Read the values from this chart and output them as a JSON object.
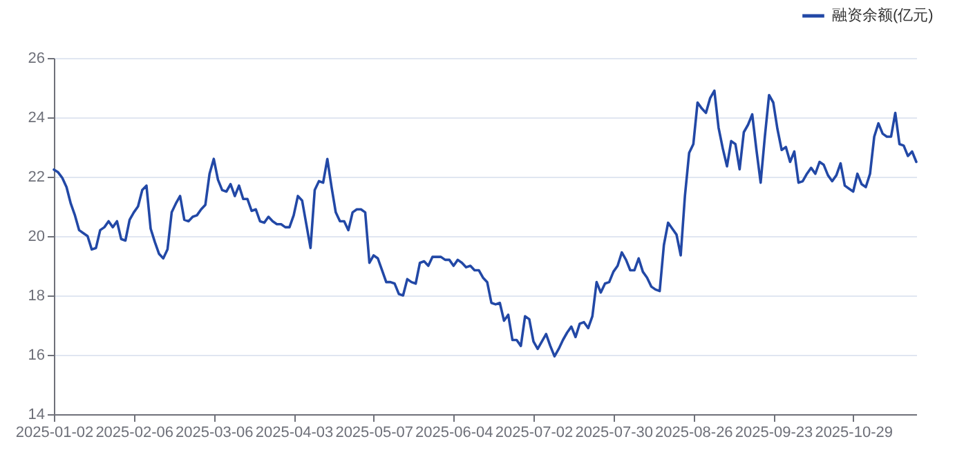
{
  "chart_data": {
    "type": "line",
    "categories": [
      "2025-01-02",
      null,
      null,
      null,
      null,
      null,
      null,
      null,
      null,
      null,
      null,
      null,
      null,
      null,
      null,
      null,
      null,
      null,
      null,
      "2025-02-06",
      null,
      null,
      null,
      null,
      null,
      null,
      null,
      null,
      null,
      null,
      null,
      null,
      null,
      null,
      null,
      null,
      null,
      null,
      "2025-03-06",
      null,
      null,
      null,
      null,
      null,
      null,
      null,
      null,
      null,
      null,
      null,
      null,
      null,
      null,
      null,
      null,
      null,
      null,
      "2025-04-03",
      null,
      null,
      null,
      null,
      null,
      null,
      null,
      null,
      null,
      null,
      null,
      null,
      null,
      null,
      null,
      null,
      null,
      null,
      "2025-05-07",
      null,
      null,
      null,
      null,
      null,
      null,
      null,
      null,
      null,
      null,
      null,
      null,
      null,
      null,
      null,
      null,
      null,
      null,
      "2025-06-04",
      null,
      null,
      null,
      null,
      null,
      null,
      null,
      null,
      null,
      null,
      null,
      null,
      null,
      null,
      null,
      null,
      null,
      null,
      "2025-07-02",
      null,
      null,
      null,
      null,
      null,
      null,
      null,
      null,
      null,
      null,
      null,
      null,
      null,
      null,
      null,
      null,
      null,
      null,
      "2025-07-30",
      null,
      null,
      null,
      null,
      null,
      null,
      null,
      null,
      null,
      null,
      null,
      null,
      null,
      null,
      null,
      null,
      null,
      null,
      "2025-08-26",
      null,
      null,
      null,
      null,
      null,
      null,
      null,
      null,
      null,
      null,
      null,
      null,
      null,
      null,
      null,
      null,
      null,
      null,
      "2025-09-23",
      null,
      null,
      null,
      null,
      null,
      null,
      null,
      null,
      null,
      null,
      null,
      null,
      null,
      null,
      null,
      null,
      null,
      null,
      "2025-10-29",
      null,
      null,
      null,
      null,
      null,
      null,
      null,
      null,
      null,
      null,
      null,
      null,
      null,
      null,
      null
    ],
    "series": [
      {
        "name": "融资余额(亿元)",
        "color": "#2248a6",
        "values": [
          22.24,
          22.15,
          21.96,
          21.65,
          21.1,
          20.7,
          20.2,
          20.1,
          20.0,
          19.55,
          19.6,
          20.2,
          20.3,
          20.5,
          20.3,
          20.5,
          19.9,
          19.85,
          20.55,
          20.8,
          21.0,
          21.55,
          21.7,
          20.25,
          19.8,
          19.4,
          19.25,
          19.55,
          20.8,
          21.1,
          21.35,
          20.55,
          20.5,
          20.65,
          20.7,
          20.9,
          21.05,
          22.1,
          22.6,
          21.9,
          21.55,
          21.5,
          21.75,
          21.35,
          21.7,
          21.25,
          21.25,
          20.85,
          20.9,
          20.5,
          20.45,
          20.65,
          20.5,
          20.4,
          20.4,
          20.3,
          20.3,
          20.7,
          21.35,
          21.2,
          20.4,
          19.6,
          21.55,
          21.85,
          21.8,
          22.6,
          21.65,
          20.8,
          20.5,
          20.5,
          20.2,
          20.8,
          20.9,
          20.9,
          20.8,
          19.1,
          19.35,
          19.25,
          18.85,
          18.45,
          18.45,
          18.4,
          18.05,
          18.0,
          18.55,
          18.45,
          18.4,
          19.1,
          19.15,
          19.0,
          19.3,
          19.3,
          19.3,
          19.2,
          19.2,
          19.0,
          19.2,
          19.1,
          18.95,
          19.0,
          18.85,
          18.85,
          18.6,
          18.45,
          17.75,
          17.7,
          17.75,
          17.15,
          17.35,
          16.5,
          16.5,
          16.3,
          17.3,
          17.2,
          16.45,
          16.2,
          16.45,
          16.7,
          16.3,
          15.95,
          16.2,
          16.5,
          16.75,
          16.95,
          16.6,
          17.05,
          17.1,
          16.9,
          17.3,
          18.45,
          18.1,
          18.4,
          18.45,
          18.8,
          19.0,
          19.45,
          19.2,
          18.85,
          18.85,
          19.25,
          18.8,
          18.6,
          18.3,
          18.2,
          18.15,
          19.7,
          20.45,
          20.25,
          20.05,
          19.35,
          21.35,
          22.8,
          23.1,
          24.5,
          24.3,
          24.15,
          24.65,
          24.9,
          23.65,
          22.95,
          22.35,
          23.2,
          23.1,
          22.25,
          23.5,
          23.75,
          24.1,
          22.9,
          21.8,
          23.35,
          24.75,
          24.5,
          23.6,
          22.9,
          23.0,
          22.5,
          22.85,
          21.8,
          21.85,
          22.1,
          22.3,
          22.1,
          22.5,
          22.4,
          22.05,
          21.85,
          22.05,
          22.45,
          21.7,
          21.6,
          21.5,
          22.1,
          21.75,
          21.65,
          22.1,
          23.35,
          23.8,
          23.45,
          23.35,
          23.35,
          24.15,
          23.1,
          23.05,
          22.7,
          22.85,
          22.5
        ]
      }
    ],
    "ylim": [
      14,
      26
    ],
    "yticks": [
      14,
      16,
      18,
      20,
      22,
      24,
      26
    ],
    "grid": "y",
    "legend": "top right"
  }
}
